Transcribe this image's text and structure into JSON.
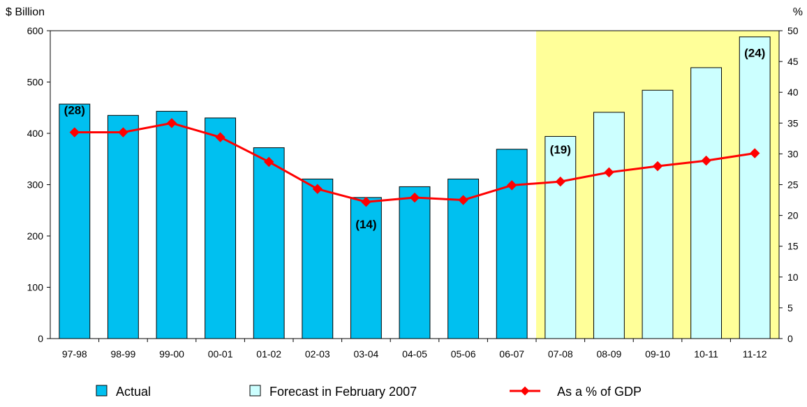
{
  "chart_data": {
    "type": "bar",
    "categories": [
      "97-98",
      "98-99",
      "99-00",
      "00-01",
      "01-02",
      "02-03",
      "03-04",
      "04-05",
      "05-06",
      "06-07",
      "07-08",
      "08-09",
      "09-10",
      "10-11",
      "11-12"
    ],
    "series": [
      {
        "name": "Actual",
        "type": "bar",
        "axis": "left",
        "color": "#00C0F0",
        "x": [
          "97-98",
          "98-99",
          "99-00",
          "00-01",
          "01-02",
          "02-03",
          "03-04",
          "04-05",
          "05-06",
          "06-07"
        ],
        "values": [
          457,
          435,
          443,
          430,
          372,
          311,
          275,
          296,
          311,
          369
        ]
      },
      {
        "name": "Forecast in February 2007",
        "type": "bar",
        "axis": "left",
        "color": "#CCFFFF",
        "x": [
          "07-08",
          "08-09",
          "09-10",
          "10-11",
          "11-12"
        ],
        "values": [
          394,
          441,
          484,
          528,
          588
        ]
      },
      {
        "name": "As a % of GDP",
        "type": "line",
        "axis": "right",
        "color": "#FF0000",
        "x": [
          "97-98",
          "98-99",
          "99-00",
          "00-01",
          "01-02",
          "02-03",
          "03-04",
          "04-05",
          "05-06",
          "06-07",
          "07-08",
          "08-09",
          "09-10",
          "10-11",
          "11-12"
        ],
        "values": [
          33.5,
          33.5,
          35.0,
          32.7,
          28.7,
          24.3,
          22.2,
          22.9,
          22.5,
          24.9,
          25.5,
          27.0,
          28.0,
          28.9,
          30.1
        ]
      }
    ],
    "annotations": [
      {
        "category": "97-98",
        "text": "(28)"
      },
      {
        "category": "03-04",
        "text": "(14)"
      },
      {
        "category": "07-08",
        "text": "(19)"
      },
      {
        "category": "11-12",
        "text": "(24)"
      }
    ],
    "forecast_shading": {
      "from": "07-08",
      "to": "11-12",
      "color": "#FFFF99"
    },
    "y_left": {
      "label": "$ Billion",
      "ylim": [
        0,
        600
      ],
      "ticks": [
        0,
        100,
        200,
        300,
        400,
        500,
        600
      ]
    },
    "y_right": {
      "label": "%",
      "ylim": [
        0,
        50
      ],
      "ticks": [
        0,
        5,
        10,
        15,
        20,
        25,
        30,
        35,
        40,
        45,
        50
      ]
    },
    "title": "",
    "xlabel": "",
    "grid": false,
    "legend": {
      "position": "bottom",
      "entries": [
        {
          "label": "Actual",
          "kind": "box",
          "color": "#00C0F0"
        },
        {
          "label": "Forecast in February 2007",
          "kind": "box",
          "color": "#CCFFFF"
        },
        {
          "label": "As a % of GDP",
          "kind": "line-marker",
          "color": "#FF0000"
        }
      ]
    }
  }
}
